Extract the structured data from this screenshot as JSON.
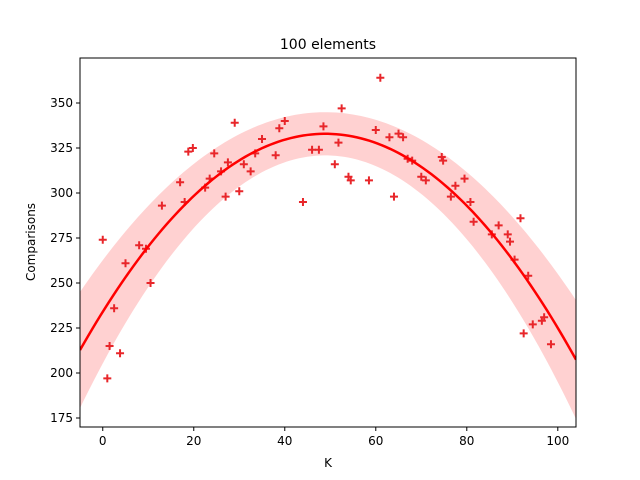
{
  "chart_data": {
    "type": "scatter",
    "title": "100 elements",
    "xlabel": "K",
    "ylabel": "Comparisons",
    "xlim": [
      -5,
      104
    ],
    "ylim": [
      170,
      375
    ],
    "xticks": [
      0,
      20,
      40,
      60,
      80,
      100
    ],
    "yticks": [
      175,
      200,
      225,
      250,
      275,
      300,
      325,
      350
    ],
    "grid": false,
    "marker": "+",
    "point_color": "#e8262a",
    "fit_color": "#ff0000",
    "band_color": "#ffd1d1",
    "points": [
      [
        0,
        274
      ],
      [
        1,
        197
      ],
      [
        1.5,
        215
      ],
      [
        2.5,
        236
      ],
      [
        3.8,
        211
      ],
      [
        5,
        261
      ],
      [
        8,
        271
      ],
      [
        9.5,
        269
      ],
      [
        10.5,
        250
      ],
      [
        13,
        293
      ],
      [
        17,
        306
      ],
      [
        18,
        295
      ],
      [
        18.8,
        323
      ],
      [
        19.8,
        325
      ],
      [
        22.5,
        303
      ],
      [
        23.5,
        308
      ],
      [
        24.5,
        322
      ],
      [
        26,
        312
      ],
      [
        27,
        298
      ],
      [
        27.5,
        317
      ],
      [
        29,
        339
      ],
      [
        30,
        301
      ],
      [
        31,
        316
      ],
      [
        32.5,
        312
      ],
      [
        33.5,
        322
      ],
      [
        35,
        330
      ],
      [
        38,
        321
      ],
      [
        38.8,
        336
      ],
      [
        40,
        340
      ],
      [
        44,
        295
      ],
      [
        46,
        324
      ],
      [
        47.5,
        324
      ],
      [
        48.5,
        337
      ],
      [
        51,
        316
      ],
      [
        51.8,
        328
      ],
      [
        52.5,
        347
      ],
      [
        54,
        309
      ],
      [
        54.5,
        307
      ],
      [
        58.5,
        307
      ],
      [
        60,
        335
      ],
      [
        61,
        364
      ],
      [
        63,
        331
      ],
      [
        64,
        298
      ],
      [
        65,
        333
      ],
      [
        66,
        331
      ],
      [
        67,
        319
      ],
      [
        68,
        318
      ],
      [
        70,
        309
      ],
      [
        71,
        307
      ],
      [
        74.5,
        320
      ],
      [
        74.8,
        318
      ],
      [
        76.5,
        298
      ],
      [
        77.5,
        304
      ],
      [
        79.5,
        308
      ],
      [
        80.8,
        295
      ],
      [
        81.5,
        284
      ],
      [
        85.5,
        277
      ],
      [
        87,
        282
      ],
      [
        89,
        277
      ],
      [
        89.5,
        273
      ],
      [
        90.5,
        263
      ],
      [
        91.8,
        286
      ],
      [
        92.5,
        222
      ],
      [
        93.5,
        254
      ],
      [
        94.5,
        227
      ],
      [
        96.5,
        229
      ],
      [
        97,
        231
      ],
      [
        98.5,
        216
      ]
    ],
    "fit": {
      "a": -0.04134,
      "b": 4.044,
      "c": 234,
      "band_halfwidth_edge": 33,
      "band_halfwidth_center": 12,
      "band_center_x": 49
    }
  }
}
